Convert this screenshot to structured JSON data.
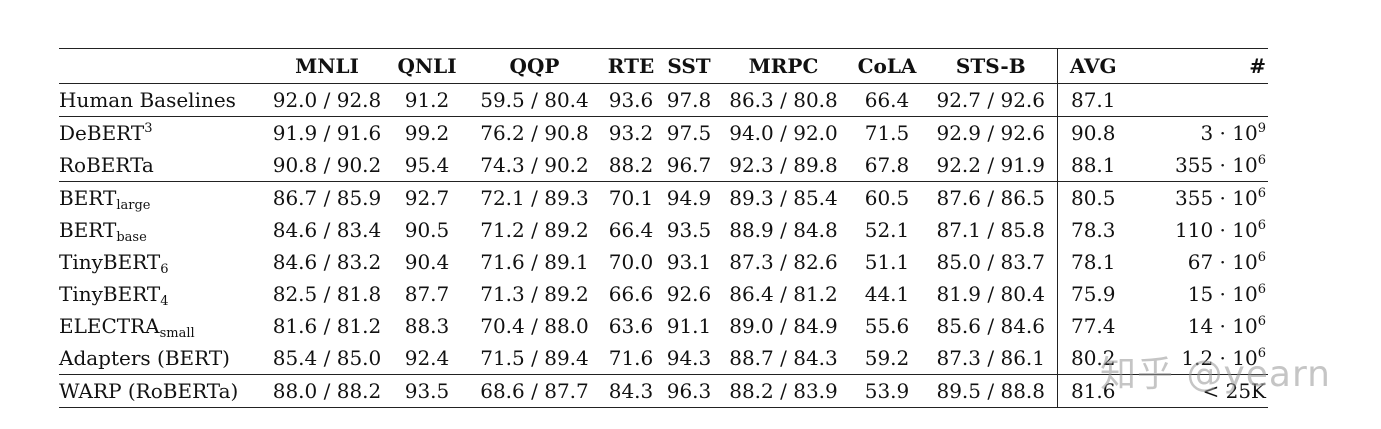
{
  "table": {
    "headers": [
      "",
      "MNLI",
      "QNLI",
      "QQP",
      "RTE",
      "SST",
      "MRPC",
      "CoLA",
      "STS-B",
      "AVG",
      "#"
    ],
    "rows": [
      {
        "model": "Human Baselines",
        "sub": "",
        "sup": "",
        "mnli": "92.0 / 92.8",
        "qnli": "91.2",
        "qqp": "59.5 / 80.4",
        "rte": "93.6",
        "sst": "97.8",
        "mrpc": "86.3 / 80.8",
        "cola": "66.4",
        "stsb": "92.7 / 92.6",
        "avg": "87.1",
        "num_base": "",
        "num_exp": ""
      },
      {
        "model": "DeBERT",
        "sub": "",
        "sup": "3",
        "mnli": "91.9 / 91.6",
        "qnli": "99.2",
        "qqp": "76.2 / 90.8",
        "rte": "93.2",
        "sst": "97.5",
        "mrpc": "94.0 / 92.0",
        "cola": "71.5",
        "stsb": "92.9 / 92.6",
        "avg": "90.8",
        "num_base": "3 · 10",
        "num_exp": "9"
      },
      {
        "model": "RoBERTa",
        "sub": "",
        "sup": "",
        "mnli": "90.8 / 90.2",
        "qnli": "95.4",
        "qqp": "74.3 / 90.2",
        "rte": "88.2",
        "sst": "96.7",
        "mrpc": "92.3 / 89.8",
        "cola": "67.8",
        "stsb": "92.2 / 91.9",
        "avg": "88.1",
        "num_base": "355 · 10",
        "num_exp": "6"
      },
      {
        "model": "BERT",
        "sub": "large",
        "sup": "",
        "mnli": "86.7 / 85.9",
        "qnli": "92.7",
        "qqp": "72.1 / 89.3",
        "rte": "70.1",
        "sst": "94.9",
        "mrpc": "89.3 / 85.4",
        "cola": "60.5",
        "stsb": "87.6 / 86.5",
        "avg": "80.5",
        "num_base": "355 · 10",
        "num_exp": "6"
      },
      {
        "model": "BERT",
        "sub": "base",
        "sup": "",
        "mnli": "84.6 / 83.4",
        "qnli": "90.5",
        "qqp": "71.2 / 89.2",
        "rte": "66.4",
        "sst": "93.5",
        "mrpc": "88.9 / 84.8",
        "cola": "52.1",
        "stsb": "87.1 / 85.8",
        "avg": "78.3",
        "num_base": "110 · 10",
        "num_exp": "6"
      },
      {
        "model": "TinyBERT",
        "sub": "6",
        "sup": "",
        "mnli": "84.6 / 83.2",
        "qnli": "90.4",
        "qqp": "71.6 / 89.1",
        "rte": "70.0",
        "sst": "93.1",
        "mrpc": "87.3 / 82.6",
        "cola": "51.1",
        "stsb": "85.0 / 83.7",
        "avg": "78.1",
        "num_base": "67 · 10",
        "num_exp": "6"
      },
      {
        "model": "TinyBERT",
        "sub": "4",
        "sup": "",
        "mnli": "82.5 / 81.8",
        "qnli": "87.7",
        "qqp": "71.3 / 89.2",
        "rte": "66.6",
        "sst": "92.6",
        "mrpc": "86.4 / 81.2",
        "cola": "44.1",
        "stsb": "81.9 / 80.4",
        "avg": "75.9",
        "num_base": "15 · 10",
        "num_exp": "6"
      },
      {
        "model": "ELECTRA",
        "sub": "small",
        "sup": "",
        "mnli": "81.6 / 81.2",
        "qnli": "88.3",
        "qqp": "70.4 / 88.0",
        "rte": "63.6",
        "sst": "91.1",
        "mrpc": "89.0 / 84.9",
        "cola": "55.6",
        "stsb": "85.6 / 84.6",
        "avg": "77.4",
        "num_base": "14 · 10",
        "num_exp": "6"
      },
      {
        "model": "Adapters (BERT)",
        "sub": "",
        "sup": "",
        "mnli": "85.4 / 85.0",
        "qnli": "92.4",
        "qqp": "71.5 / 89.4",
        "rte": "71.6",
        "sst": "94.3",
        "mrpc": "88.7 / 84.3",
        "cola": "59.2",
        "stsb": "87.3 / 86.1",
        "avg": "80.2",
        "num_base": "1.2 · 10",
        "num_exp": "6"
      },
      {
        "model": "WARP (RoBERTa)",
        "sub": "",
        "sup": "",
        "mnli": "88.0 / 88.2",
        "qnli": "93.5",
        "qqp": "68.6 / 87.7",
        "rte": "84.3",
        "sst": "96.3",
        "mrpc": "88.2 / 83.9",
        "cola": "53.9",
        "stsb": "89.5 / 88.8",
        "avg": "81.6",
        "num_base": "< 25K",
        "num_exp": ""
      }
    ]
  },
  "watermark": "知乎 @yearn"
}
